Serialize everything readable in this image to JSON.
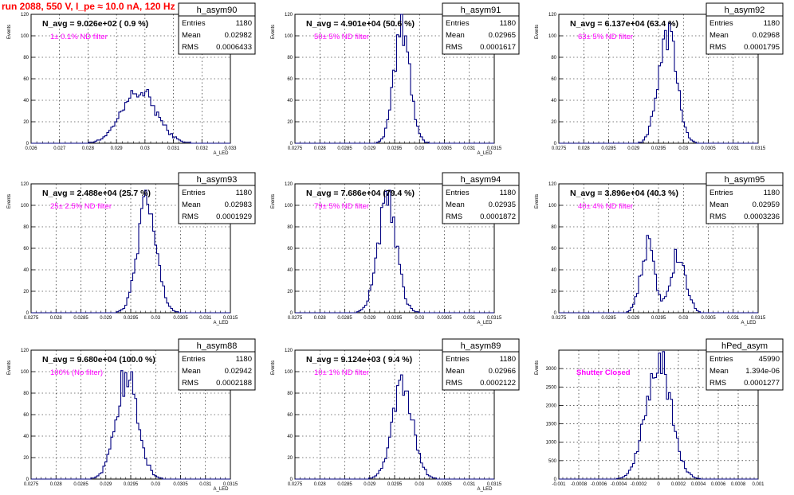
{
  "header": {
    "title": "run 2088,   550 V, I_pe ≈ 10.0 nA, 120 Hz",
    "color": "#ff0000"
  },
  "colors": {
    "hist": "#000080",
    "annotation": "#ff00ff",
    "text": "#000000"
  },
  "chart_data": [
    {
      "type": "bar",
      "name": "h_asym90",
      "stats": {
        "entries_label": "Entries",
        "entries": "1180",
        "mean_label": "Mean",
        "mean": "0.02982",
        "rms_label": "RMS",
        "rms": "0.0006433"
      },
      "navg": "N_avg = 9.026e+02 ( 0.9 %)",
      "filter": "1± 0.1% ND filter",
      "ylabel": "Events",
      "xlabel": "A_LED",
      "xlim": [
        0.026,
        0.033
      ],
      "ylim": [
        0,
        120
      ],
      "xticks": [
        "0.026",
        "0.027",
        "0.028",
        "0.029",
        "0.03",
        "0.031",
        "0.032",
        "0.033"
      ],
      "yticks": [
        "0",
        "20",
        "40",
        "60",
        "80",
        "100",
        "120"
      ],
      "peaks": [
        {
          "mu": 0.0298,
          "s": 0.0006,
          "a": 48
        }
      ]
    },
    {
      "type": "bar",
      "name": "h_asym91",
      "stats": {
        "entries_label": "Entries",
        "entries": "1180",
        "mean_label": "Mean",
        "mean": "0.02965",
        "rms_label": "RMS",
        "rms": "0.0001617"
      },
      "navg": "N_avg = 4.901e+04 (50.6 %)",
      "filter": "50± 5% ND filter",
      "ylabel": "Events",
      "xlabel": "A_LED",
      "xlim": [
        0.0275,
        0.0315
      ],
      "ylim": [
        0,
        120
      ],
      "xticks": [
        "0.0275",
        "0.028",
        "0.0285",
        "0.029",
        "0.0295",
        "0.03",
        "0.0305",
        "0.031",
        "0.0315"
      ],
      "yticks": [
        "0",
        "20",
        "40",
        "60",
        "80",
        "100",
        "120"
      ],
      "peaks": [
        {
          "mu": 0.02965,
          "s": 0.00016,
          "a": 105
        }
      ]
    },
    {
      "type": "bar",
      "name": "h_asym92",
      "stats": {
        "entries_label": "Entries",
        "entries": "1180",
        "mean_label": "Mean",
        "mean": "0.02968",
        "rms_label": "RMS",
        "rms": "0.0001795"
      },
      "navg": "N_avg = 6.137e+04 (63.4 %)",
      "filter": "63± 5% ND filter",
      "ylabel": "Events",
      "xlabel": "",
      "xlim": [
        0.0275,
        0.0315
      ],
      "ylim": [
        0,
        120
      ],
      "xticks": [
        "0.0275",
        "0.028",
        "0.0285",
        "0.029",
        "0.0295",
        "0.03",
        "0.0305",
        "0.031",
        "0.0315"
      ],
      "yticks": [
        "0",
        "20",
        "40",
        "60",
        "80",
        "100",
        "120"
      ],
      "peaks": [
        {
          "mu": 0.02968,
          "s": 0.00018,
          "a": 105
        }
      ]
    },
    {
      "type": "bar",
      "name": "h_asym93",
      "stats": {
        "entries_label": "Entries",
        "entries": "1180",
        "mean_label": "Mean",
        "mean": "0.02983",
        "rms_label": "RMS",
        "rms": "0.0001929"
      },
      "navg": "N_avg = 2.488e+04 (25.7 %)",
      "filter": "25± 2.5% ND filter",
      "ylabel": "Events",
      "xlabel": "A_LED",
      "xlim": [
        0.0275,
        0.0315
      ],
      "ylim": [
        0,
        120
      ],
      "xticks": [
        "0.0275",
        "0.028",
        "0.0285",
        "0.029",
        "0.0295",
        "0.03",
        "0.0305",
        "0.031",
        "0.0315"
      ],
      "yticks": [
        "0",
        "20",
        "40",
        "60",
        "80",
        "100",
        "120"
      ],
      "peaks": [
        {
          "mu": 0.02983,
          "s": 0.00019,
          "a": 100
        }
      ]
    },
    {
      "type": "bar",
      "name": "h_asym94",
      "stats": {
        "entries_label": "Entries",
        "entries": "1180",
        "mean_label": "Mean",
        "mean": "0.02935",
        "rms_label": "RMS",
        "rms": "0.0001872"
      },
      "navg": "N_avg = 7.686e+04 (79.4 %)",
      "filter": "79± 5% ND filter",
      "ylabel": "Events",
      "xlabel": "A_LED",
      "xlim": [
        0.0275,
        0.0315
      ],
      "ylim": [
        0,
        120
      ],
      "xticks": [
        "0.0275",
        "0.028",
        "0.0285",
        "0.029",
        "0.0295",
        "0.03",
        "0.0305",
        "0.031",
        "0.0315"
      ],
      "yticks": [
        "0",
        "20",
        "40",
        "60",
        "80",
        "100",
        "120"
      ],
      "peaks": [
        {
          "mu": 0.02935,
          "s": 0.00019,
          "a": 100
        }
      ]
    },
    {
      "type": "bar",
      "name": "h_asym95",
      "stats": {
        "entries_label": "Entries",
        "entries": "1180",
        "mean_label": "Mean",
        "mean": "0.02959",
        "rms_label": "RMS",
        "rms": "0.0003236"
      },
      "navg": "N_avg = 3.896e+04 (40.3 %)",
      "filter": "40± 4% ND filter",
      "ylabel": "Events",
      "xlabel": "A_LED",
      "xlim": [
        0.0275,
        0.0315
      ],
      "ylim": [
        0,
        120
      ],
      "xticks": [
        "0.0275",
        "0.028",
        "0.0285",
        "0.029",
        "0.0295",
        "0.03",
        "0.0305",
        "0.031",
        "0.0315"
      ],
      "yticks": [
        "0",
        "20",
        "40",
        "60",
        "80",
        "100",
        "120"
      ],
      "peaks": [
        {
          "mu": 0.02928,
          "s": 0.00014,
          "a": 62
        },
        {
          "mu": 0.0299,
          "s": 0.00015,
          "a": 55
        }
      ]
    },
    {
      "type": "bar",
      "name": "h_asym88",
      "stats": {
        "entries_label": "Entries",
        "entries": "1180",
        "mean_label": "Mean",
        "mean": "0.02942",
        "rms_label": "RMS",
        "rms": "0.0002188"
      },
      "navg": "N_avg = 9.680e+04 (100.0 %)",
      "filter": "100% (No filter)",
      "ylabel": "Events",
      "xlabel": "A_LED",
      "xlim": [
        0.0275,
        0.0315
      ],
      "ylim": [
        0,
        120
      ],
      "xticks": [
        "0.0275",
        "0.028",
        "0.0285",
        "0.029",
        "0.0295",
        "0.03",
        "0.0305",
        "0.031",
        "0.0315"
      ],
      "yticks": [
        "0",
        "20",
        "40",
        "60",
        "80",
        "100",
        "120"
      ],
      "peaks": [
        {
          "mu": 0.02942,
          "s": 0.00022,
          "a": 95
        }
      ]
    },
    {
      "type": "bar",
      "name": "h_asym89",
      "stats": {
        "entries_label": "Entries",
        "entries": "1180",
        "mean_label": "Mean",
        "mean": "0.02966",
        "rms_label": "RMS",
        "rms": "0.0002122"
      },
      "navg": "N_avg = 9.124e+03 ( 9.4 %)",
      "filter": "10± 1% ND filter",
      "ylabel": "Events",
      "xlabel": "A_LED",
      "xlim": [
        0.0275,
        0.0315
      ],
      "ylim": [
        0,
        120
      ],
      "xticks": [
        "0.0275",
        "0.028",
        "0.0285",
        "0.029",
        "0.0295",
        "0.03",
        "0.0305",
        "0.031",
        "0.0315"
      ],
      "yticks": [
        "0",
        "20",
        "40",
        "60",
        "80",
        "100",
        "120"
      ],
      "peaks": [
        {
          "mu": 0.02966,
          "s": 0.00021,
          "a": 85
        }
      ]
    },
    {
      "type": "bar",
      "name": "hPed_asym",
      "stats": {
        "entries_label": "Entries",
        "entries": "45990",
        "mean_label": "Mean",
        "mean": "1.394e-06",
        "rms_label": "RMS",
        "rms": "0.0001277"
      },
      "navg": "",
      "filter": "Shutter Closed",
      "ylabel": "Events",
      "xlabel": "",
      "xlim": [
        -0.001,
        0.001
      ],
      "ylim": [
        0,
        3500
      ],
      "xticks": [
        "-0.001",
        "-0.0008",
        "-0.0006",
        "-0.0004",
        "-0.0002",
        "0",
        "0.0002",
        "0.0004",
        "0.0006",
        "0.0008",
        "0.001"
      ],
      "yticks": [
        "0",
        "500",
        "1000",
        "1500",
        "2000",
        "2500",
        "3000"
      ],
      "peaks": [
        {
          "mu": 0.0,
          "s": 0.000125,
          "a": 3250
        }
      ]
    }
  ]
}
